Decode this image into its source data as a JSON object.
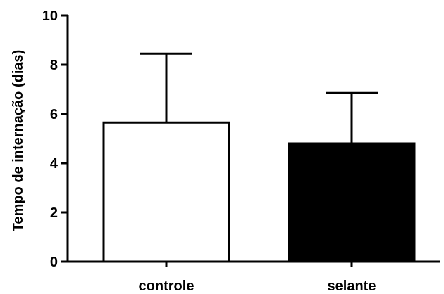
{
  "chart_data": {
    "type": "bar",
    "title": "",
    "xlabel": "",
    "ylabel": "Tempo de internação (dias)",
    "ylim": [
      0,
      10
    ],
    "yticks": [
      0,
      2,
      4,
      6,
      8,
      10
    ],
    "ytick_labels": [
      "0",
      "2",
      "4",
      "6",
      "8",
      "10"
    ],
    "categories": [
      "controle",
      "selante"
    ],
    "series": [
      {
        "values": [
          5.65,
          4.8
        ],
        "error_upper": [
          2.8,
          2.05
        ],
        "fill_colors": [
          "#ffffff",
          "#000000"
        ]
      }
    ],
    "grid": false,
    "legend": "none"
  }
}
